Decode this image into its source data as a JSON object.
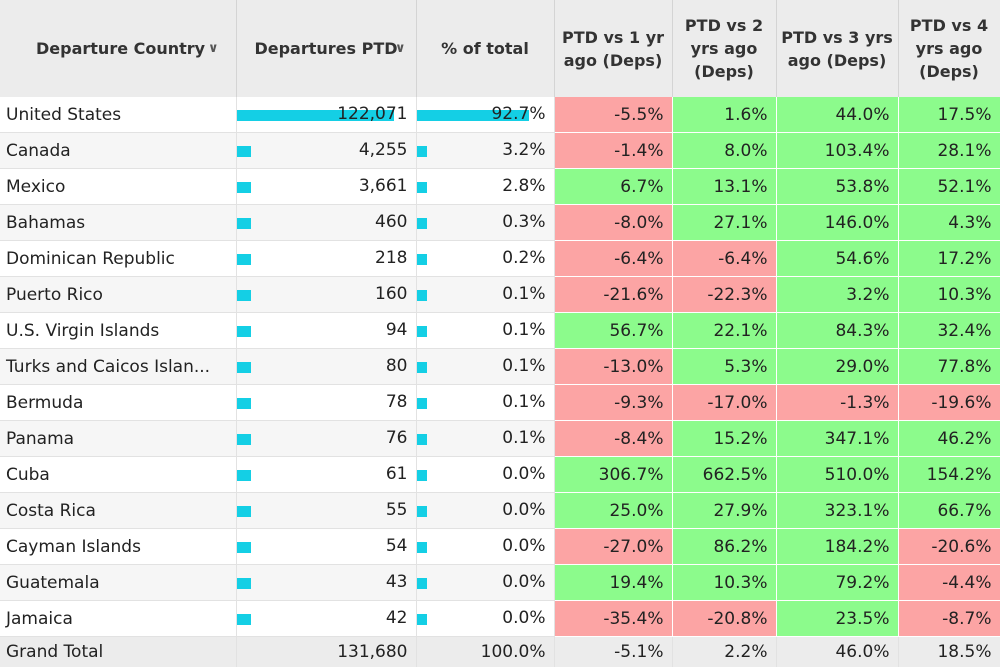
{
  "header": {
    "country": "Departure Country",
    "departures": "Departures PTD",
    "share": "% of total",
    "vs1": "PTD vs 1 yr ago (Deps)",
    "vs2": "PTD vs 2 yrs ago (Deps)",
    "vs3": "PTD vs 3 yrs ago (Deps)",
    "vs4": "PTD vs 4 yrs ago (Deps)",
    "sort_icon": "chevron-down-icon"
  },
  "colors": {
    "bar": "#14cfe5",
    "positive": "#8cfb8c",
    "negative": "#fca4a4"
  },
  "rows": [
    {
      "country": "United States",
      "departures": "122,071",
      "dep_value": 122071,
      "share": "92.7%",
      "share_value": 92.7,
      "vs1": "-5.5%",
      "vs2": "1.6%",
      "vs3": "44.0%",
      "vs4": "17.5%"
    },
    {
      "country": "Canada",
      "departures": "4,255",
      "dep_value": 4255,
      "share": "3.2%",
      "share_value": 3.2,
      "vs1": "-1.4%",
      "vs2": "8.0%",
      "vs3": "103.4%",
      "vs4": "28.1%"
    },
    {
      "country": "Mexico",
      "departures": "3,661",
      "dep_value": 3661,
      "share": "2.8%",
      "share_value": 2.8,
      "vs1": "6.7%",
      "vs2": "13.1%",
      "vs3": "53.8%",
      "vs4": "52.1%"
    },
    {
      "country": "Bahamas",
      "departures": "460",
      "dep_value": 460,
      "share": "0.3%",
      "share_value": 0.3,
      "vs1": "-8.0%",
      "vs2": "27.1%",
      "vs3": "146.0%",
      "vs4": "4.3%"
    },
    {
      "country": "Dominican Republic",
      "departures": "218",
      "dep_value": 218,
      "share": "0.2%",
      "share_value": 0.2,
      "vs1": "-6.4%",
      "vs2": "-6.4%",
      "vs3": "54.6%",
      "vs4": "17.2%"
    },
    {
      "country": "Puerto Rico",
      "departures": "160",
      "dep_value": 160,
      "share": "0.1%",
      "share_value": 0.1,
      "vs1": "-21.6%",
      "vs2": "-22.3%",
      "vs3": "3.2%",
      "vs4": "10.3%"
    },
    {
      "country": "U.S. Virgin Islands",
      "departures": "94",
      "dep_value": 94,
      "share": "0.1%",
      "share_value": 0.1,
      "vs1": "56.7%",
      "vs2": "22.1%",
      "vs3": "84.3%",
      "vs4": "32.4%"
    },
    {
      "country": "Turks and Caicos Islan...",
      "departures": "80",
      "dep_value": 80,
      "share": "0.1%",
      "share_value": 0.1,
      "vs1": "-13.0%",
      "vs2": "5.3%",
      "vs3": "29.0%",
      "vs4": "77.8%"
    },
    {
      "country": "Bermuda",
      "departures": "78",
      "dep_value": 78,
      "share": "0.1%",
      "share_value": 0.1,
      "vs1": "-9.3%",
      "vs2": "-17.0%",
      "vs3": "-1.3%",
      "vs4": "-19.6%"
    },
    {
      "country": "Panama",
      "departures": "76",
      "dep_value": 76,
      "share": "0.1%",
      "share_value": 0.1,
      "vs1": "-8.4%",
      "vs2": "15.2%",
      "vs3": "347.1%",
      "vs4": "46.2%"
    },
    {
      "country": "Cuba",
      "departures": "61",
      "dep_value": 61,
      "share": "0.0%",
      "share_value": 0.0,
      "vs1": "306.7%",
      "vs2": "662.5%",
      "vs3": "510.0%",
      "vs4": "154.2%"
    },
    {
      "country": "Costa Rica",
      "departures": "55",
      "dep_value": 55,
      "share": "0.0%",
      "share_value": 0.0,
      "vs1": "25.0%",
      "vs2": "27.9%",
      "vs3": "323.1%",
      "vs4": "66.7%"
    },
    {
      "country": "Cayman Islands",
      "departures": "54",
      "dep_value": 54,
      "share": "0.0%",
      "share_value": 0.0,
      "vs1": "-27.0%",
      "vs2": "86.2%",
      "vs3": "184.2%",
      "vs4": "-20.6%"
    },
    {
      "country": "Guatemala",
      "departures": "43",
      "dep_value": 43,
      "share": "0.0%",
      "share_value": 0.0,
      "vs1": "19.4%",
      "vs2": "10.3%",
      "vs3": "79.2%",
      "vs4": "-4.4%"
    },
    {
      "country": "Jamaica",
      "departures": "42",
      "dep_value": 42,
      "share": "0.0%",
      "share_value": 0.0,
      "vs1": "-35.4%",
      "vs2": "-20.8%",
      "vs3": "23.5%",
      "vs4": "-8.7%"
    }
  ],
  "total": {
    "country": "Grand Total",
    "departures": "131,680",
    "share": "100.0%",
    "vs1": "-5.1%",
    "vs2": "2.2%",
    "vs3": "46.0%",
    "vs4": "18.5%"
  }
}
